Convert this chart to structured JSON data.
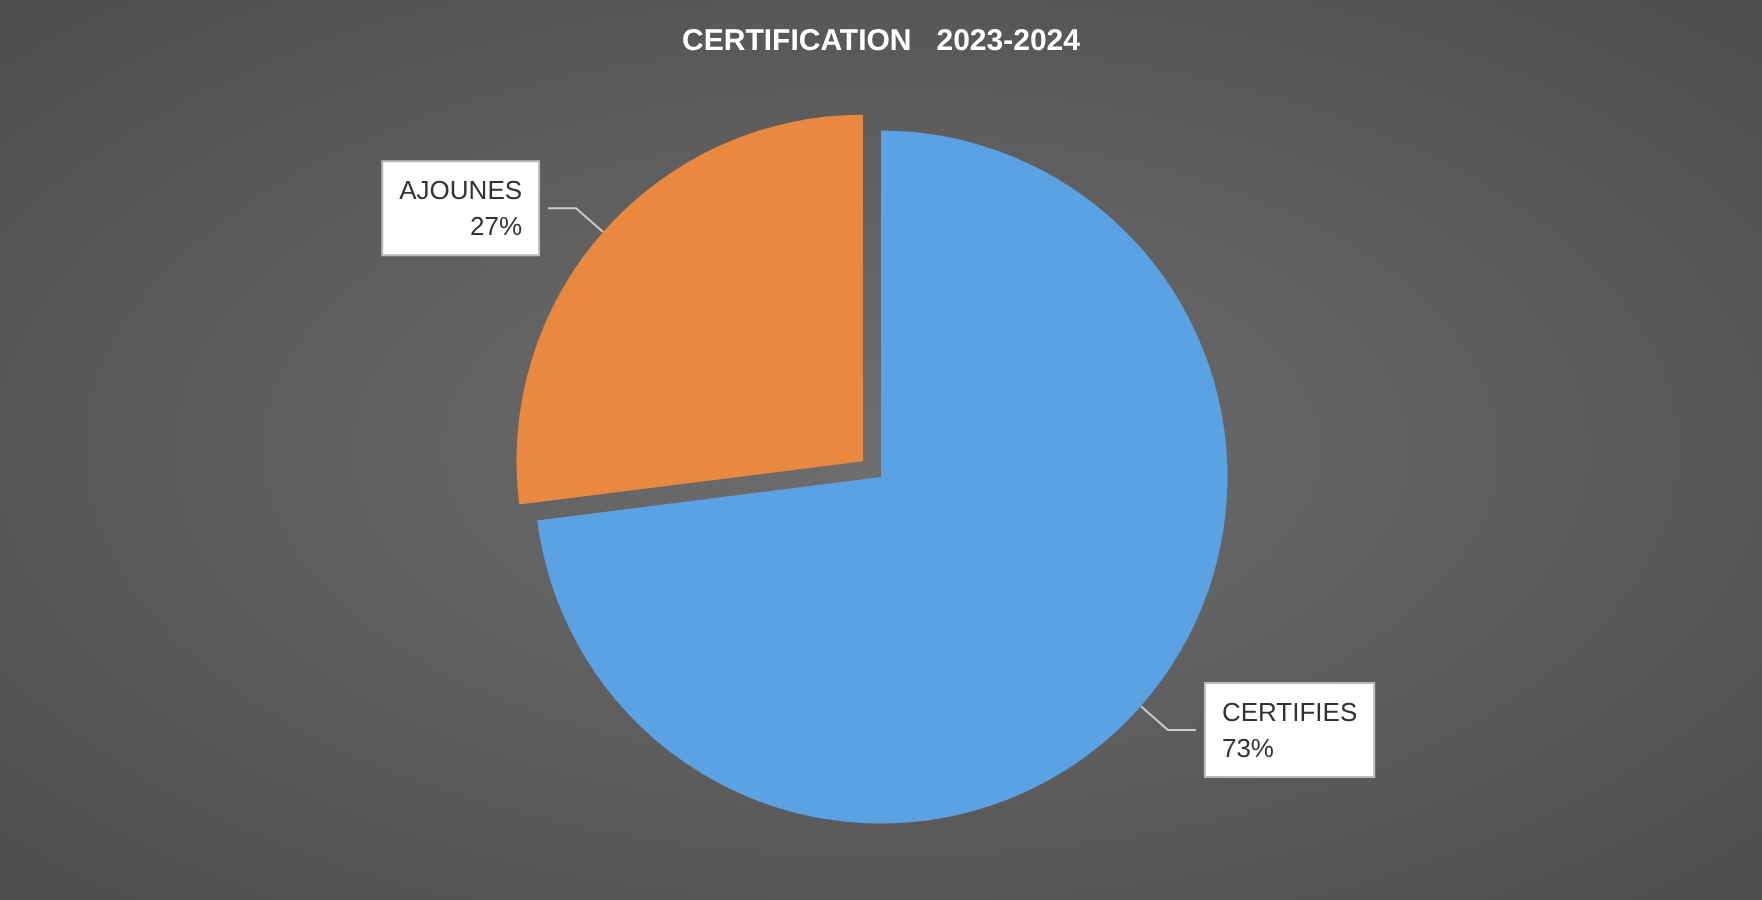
{
  "chart_data": {
    "type": "pie",
    "title": "CERTIFICATION   2023-2024",
    "categories": [
      "CERTIFIES",
      "AJOUNES"
    ],
    "values": [
      73,
      27
    ],
    "value_labels": [
      "73%",
      "27%"
    ],
    "colors": [
      "#5aa2e2",
      "#e9893f"
    ],
    "legend": false
  }
}
